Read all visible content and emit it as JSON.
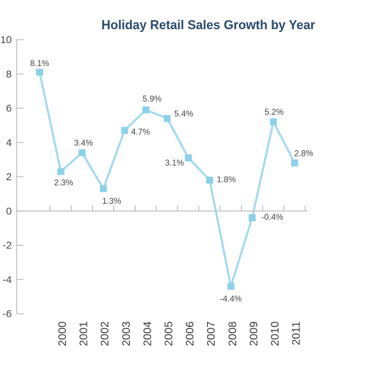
{
  "chart_data": {
    "type": "line",
    "title": "Holiday Retail Sales Growth by Year",
    "xlabel": "",
    "ylabel": "",
    "ylim": [
      -6,
      10
    ],
    "yticks": [
      10,
      8,
      6,
      4,
      2,
      0,
      -2,
      -4,
      -6
    ],
    "ytick_labels": [
      "10",
      "8",
      "6",
      "4",
      "2",
      "0",
      "-2",
      "-4",
      "-6"
    ],
    "categories": [
      "2000",
      "2001",
      "2002",
      "2003",
      "2004",
      "2005",
      "2006",
      "2007",
      "2008",
      "2009",
      "2010",
      "2011"
    ],
    "x": [
      1999.5,
      2000,
      2000.5,
      2001,
      2001.5,
      2002,
      2002.5,
      2003,
      2003.5,
      2004,
      2004.5,
      2005,
      2005.5,
      2006,
      2006.5,
      2007,
      2007.5,
      2008,
      2008.5,
      2009,
      2009.5,
      2010,
      2010.5,
      2011,
      2011.5
    ],
    "values": [
      8.1,
      2.3,
      3.4,
      1.3,
      4.7,
      5.9,
      5.4,
      3.1,
      1.8,
      -4.4,
      -0.4,
      5.2,
      2.8
    ],
    "labels": [
      "8.1%",
      "2.3%",
      "3.4%",
      "1.3%",
      "4.7%",
      "5.9%",
      "5.4%",
      "3.1%",
      "1.8%",
      "-4.4%",
      "-0.4%",
      "5.2%",
      "2.8%"
    ],
    "grid": false,
    "legend": "none",
    "line_color": "#a3d9ee",
    "marker_color": "#8dd0ea",
    "axis_color": "#aaaaaa"
  }
}
